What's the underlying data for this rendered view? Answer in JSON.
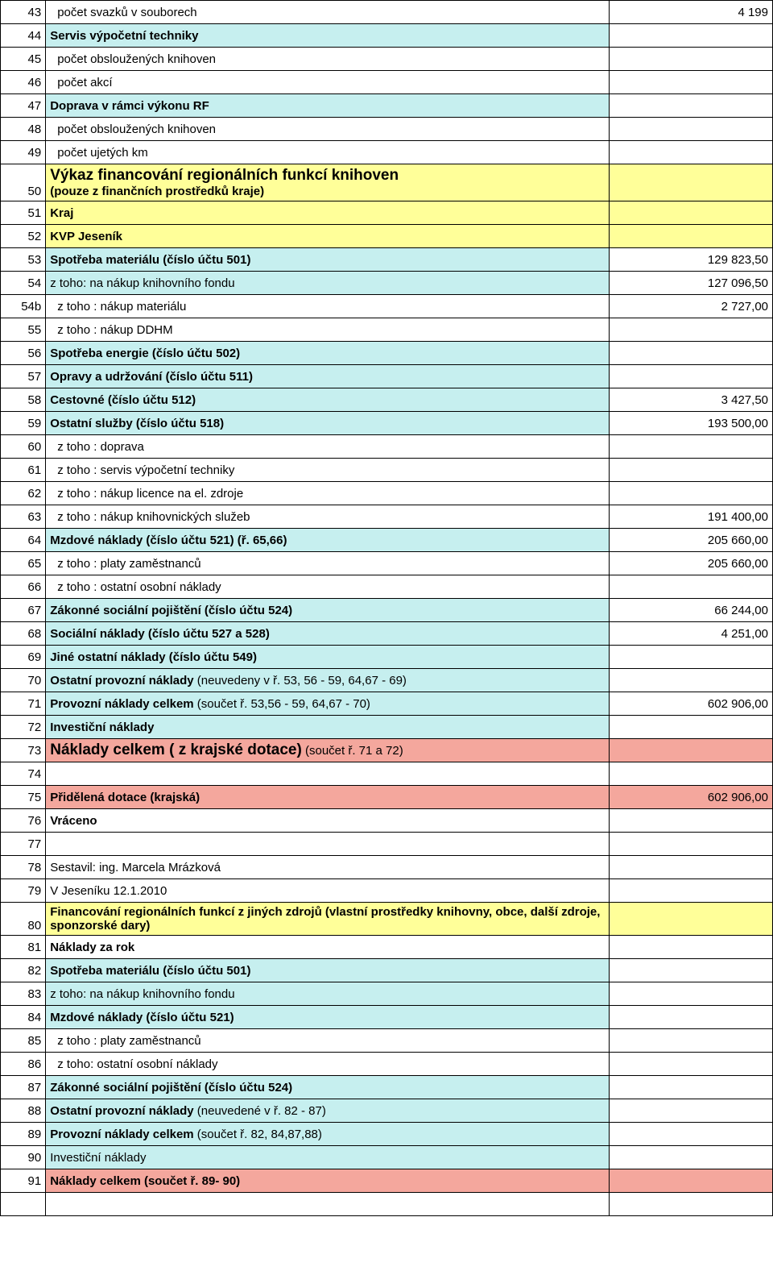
{
  "colors": {
    "yellow": "#ffff99",
    "cyan": "#c6efef",
    "salmon": "#f4a79d",
    "white": "#ffffff"
  },
  "rows": [
    {
      "num": "43",
      "label": " počet svazků v souborech",
      "val": "4 199",
      "bg": "white",
      "indent": true
    },
    {
      "num": "44",
      "label": "Servis výpočetní techniky",
      "val": "",
      "bg": "cyan",
      "bold": true
    },
    {
      "num": "45",
      "label": " počet obsloužených knihoven",
      "val": "",
      "bg": "white",
      "indent": true
    },
    {
      "num": "46",
      "label": " počet akcí",
      "val": "",
      "bg": "white",
      "indent": true
    },
    {
      "num": "47",
      "label": "Doprava v rámci výkonu RF",
      "val": "",
      "bg": "cyan",
      "bold": true
    },
    {
      "num": "48",
      "label": " počet obsloužených knihoven",
      "val": "",
      "bg": "white",
      "indent": true
    },
    {
      "num": "49",
      "label": " počet ujetých km",
      "val": "",
      "bg": "white",
      "indent": true
    },
    {
      "num": "50",
      "label": "Výkaz financování regionálních funkcí knihoven\n(pouze z finančních prostředků kraje)",
      "val": "",
      "bg": "yellow",
      "big": true,
      "multiline": true
    },
    {
      "num": "51",
      "label": "Kraj",
      "val": "",
      "bg": "yellow",
      "mid": true
    },
    {
      "num": "52",
      "label": "KVP Jeseník",
      "val": "",
      "bg": "yellow",
      "mid": true
    },
    {
      "num": "53",
      "label": "Spotřeba materiálu (číslo účtu 501)",
      "val": "129 823,50",
      "bg": "cyan",
      "bold": true
    },
    {
      "num": "54",
      "label": "z toho: na nákup knihovního fondu",
      "val": "127 096,50",
      "bg": "cyan"
    },
    {
      "num": "54b",
      "label": " z toho : nákup materiálu",
      "val": "2 727,00",
      "bg": "white",
      "indent": true
    },
    {
      "num": "55",
      "label": " z toho : nákup DDHM",
      "val": "",
      "bg": "white",
      "indent": true
    },
    {
      "num": "56",
      "label": "Spotřeba energie (číslo účtu 502)",
      "val": "",
      "bg": "cyan",
      "bold": true
    },
    {
      "num": "57",
      "label": "Opravy a udržování (číslo účtu 511)",
      "val": "",
      "bg": "cyan",
      "bold": true
    },
    {
      "num": "58",
      "label": "Cestovné (číslo účtu 512)",
      "val": "3 427,50",
      "bg": "cyan",
      "bold": true
    },
    {
      "num": "59",
      "label": "Ostatní služby (číslo účtu 518)",
      "val": "193 500,00",
      "bg": "cyan",
      "bold": true
    },
    {
      "num": "60",
      "label": " z toho : doprava",
      "val": "",
      "bg": "white",
      "indent": true
    },
    {
      "num": "61",
      "label": " z toho : servis výpočetní techniky",
      "val": "",
      "bg": "white",
      "indent": true
    },
    {
      "num": "62",
      "label": " z toho : nákup licence na el. zdroje",
      "val": "",
      "bg": "white",
      "indent": true
    },
    {
      "num": "63",
      "label": " z toho : nákup knihovnických služeb",
      "val": "191 400,00",
      "bg": "white",
      "indent": true
    },
    {
      "num": "64",
      "label": "Mzdové náklady (číslo účtu 521) (ř. 65,66)",
      "val": "205 660,00",
      "bg": "cyan",
      "bold": true
    },
    {
      "num": "65",
      "label": " z toho : platy zaměstnanců",
      "val": "205 660,00",
      "bg": "white",
      "indent": true
    },
    {
      "num": "66",
      "label": " z toho :  ostatní osobní náklady",
      "val": "",
      "bg": "white",
      "indent": true
    },
    {
      "num": "67",
      "label": "Zákonné sociální pojištění (číslo účtu 524)",
      "val": "66 244,00",
      "bg": "cyan",
      "bold": true
    },
    {
      "num": "68",
      "label": "Sociální náklady (číslo účtu 527 a 528)",
      "val": "4 251,00",
      "bg": "cyan",
      "bold": true
    },
    {
      "num": "69",
      "label": "Jiné ostatní náklady (číslo účtu 549)",
      "val": "",
      "bg": "cyan",
      "bold": true
    },
    {
      "num": "70",
      "label": "Ostatní provozní náklady (neuvedeny v ř. 53, 56 - 59, 64,67 - 69)",
      "val": "",
      "bg": "cyan",
      "bold": true,
      "partialBold": "Ostatní provozní náklady",
      "rest": " (neuvedeny v ř. 53, 56 - 59, 64,67 - 69)"
    },
    {
      "num": "71",
      "label": "Provozní náklady celkem (součet ř. 53,56 - 59, 64,67 - 70)",
      "val": "602 906,00",
      "bg": "cyan",
      "bold": true,
      "partialBold": "Provozní náklady celkem",
      "rest": " (součet ř. 53,56 - 59, 64,67 - 70)"
    },
    {
      "num": "72",
      "label": "Investiční náklady",
      "val": "",
      "bg": "cyan",
      "mid": true
    },
    {
      "num": "73",
      "label": "Náklady celkem ( z krajské dotace) (součet ř. 71 a 72)",
      "val": "",
      "bg": "salmon",
      "big": true,
      "partialBold": "Náklady celkem ( z krajské dotace)",
      "rest": " (součet ř. 71 a 72)"
    },
    {
      "num": "74",
      "label": "",
      "val": "",
      "bg": "white"
    },
    {
      "num": "75",
      "label": "Přidělená dotace (krajská)",
      "val": "602 906,00",
      "bg": "salmon",
      "big": true
    },
    {
      "num": "76",
      "label": "Vráceno",
      "val": "",
      "bg": "white",
      "bold": true
    },
    {
      "num": "77",
      "label": "",
      "val": "",
      "bg": "white"
    },
    {
      "num": "78",
      "label": "Sestavil: ing. Marcela Mrázková",
      "val": "",
      "bg": "white"
    },
    {
      "num": "79",
      "label": "V Jeseníku 12.1.2010",
      "val": "",
      "bg": "white"
    },
    {
      "num": "80",
      "label": "Financování regionálních funkcí z jiných zdrojů (vlastní prostředky knihovny, obce, další zdroje, sponzorské dary)",
      "val": "",
      "bg": "yellow",
      "bold": true,
      "multiline": true
    },
    {
      "num": "81",
      "label": "Náklady za rok",
      "val": "",
      "bg": "white",
      "bold": true
    },
    {
      "num": "82",
      "label": "Spotřeba materiálu (číslo účtu 501)",
      "val": "",
      "bg": "cyan",
      "bold": true
    },
    {
      "num": "83",
      "label": "z toho: na nákup knihovního fondu",
      "val": "",
      "bg": "cyan"
    },
    {
      "num": "84",
      "label": "Mzdové náklady (číslo účtu 521)",
      "val": "",
      "bg": "cyan",
      "bold": true
    },
    {
      "num": "85",
      "label": " z toho : platy zaměstnanců",
      "val": "",
      "bg": "white",
      "indent": true
    },
    {
      "num": "86",
      "label": " z toho: ostatní osobní náklady",
      "val": "",
      "bg": "white",
      "indent": true
    },
    {
      "num": "87",
      "label": "Zákonné sociální pojištění (číslo účtu 524)",
      "val": "",
      "bg": "cyan",
      "bold": true
    },
    {
      "num": "88",
      "label": "Ostatní provozní náklady (neuvedené v ř. 82 - 87)",
      "val": "",
      "bg": "cyan",
      "bold": true,
      "partialBold": "Ostatní provozní náklady",
      "rest": " (neuvedené v ř. 82 - 87)"
    },
    {
      "num": "89",
      "label": "Provozní náklady celkem (součet ř. 82, 84,87,88)",
      "val": "",
      "bg": "cyan",
      "bold": true,
      "partialBold": "Provozní náklady celkem",
      "rest": " (součet ř. 82, 84,87,88)"
    },
    {
      "num": "90",
      "label": "Investiční náklady",
      "val": "",
      "bg": "cyan"
    },
    {
      "num": "91",
      "label": "Náklady celkem (součet ř. 89- 90)",
      "val": "",
      "bg": "salmon",
      "big": true
    },
    {
      "num": "",
      "label": "",
      "val": "",
      "bg": "white"
    }
  ]
}
